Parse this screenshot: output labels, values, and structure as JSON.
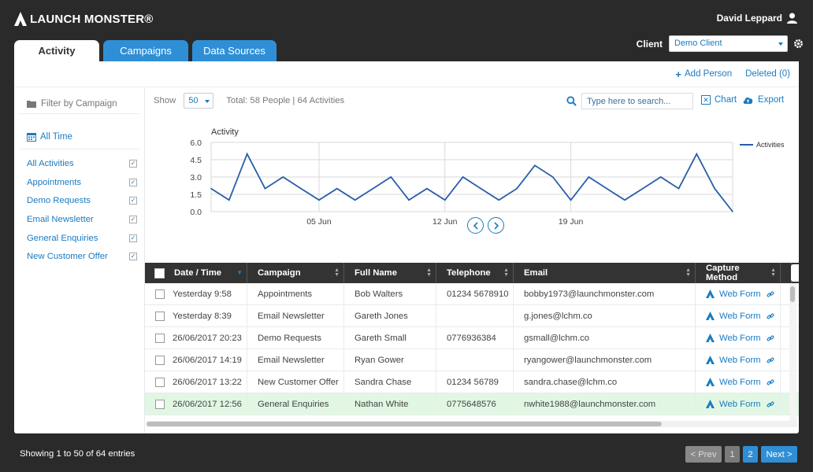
{
  "app": {
    "logo_text": "LAUNCH MONSTER®",
    "user_name": "David Leppard"
  },
  "client": {
    "label": "Client",
    "selected": "Demo Client"
  },
  "tabs": [
    {
      "label": "Activity"
    },
    {
      "label": "Campaigns"
    },
    {
      "label": "Data Sources"
    }
  ],
  "actions": {
    "add_person": "Add Person",
    "deleted": "Deleted (0)"
  },
  "sidebar": {
    "filter_label": "Filter by Campaign",
    "time_label": "All Time",
    "items": [
      {
        "label": "All Activities",
        "checked": true
      },
      {
        "label": "Appointments",
        "checked": true
      },
      {
        "label": "Demo Requests",
        "checked": true
      },
      {
        "label": "Email Newsletter",
        "checked": true
      },
      {
        "label": "General Enquiries",
        "checked": true
      },
      {
        "label": "New Customer Offer",
        "checked": true
      }
    ]
  },
  "toolbar": {
    "show_label": "Show",
    "show_value": "50",
    "total_text": "Total: 58 People | 64 Activities",
    "search_placeholder": "Type here to search...",
    "chart_label": "Chart",
    "export_label": "Export"
  },
  "chart_data": {
    "type": "line",
    "title": "Activity",
    "y_ticks": [
      "6.0",
      "4.5",
      "3.0",
      "1.5",
      "0.0"
    ],
    "ylim": [
      0,
      6
    ],
    "x_ticks": [
      {
        "label": "05 Jun",
        "index": 6
      },
      {
        "label": "12 Jun",
        "index": 13
      },
      {
        "label": "19 Jun",
        "index": 20
      }
    ],
    "grid": true,
    "legend_position": "top-right",
    "series": [
      {
        "name": "Activities",
        "color": "#2a5ea8",
        "values": [
          2,
          1,
          5,
          2,
          3,
          2,
          1,
          2,
          1,
          2,
          3,
          1,
          2,
          1,
          3,
          2,
          1,
          2,
          4,
          3,
          1,
          3,
          2,
          1,
          2,
          3,
          2,
          5,
          2,
          0
        ]
      }
    ]
  },
  "table": {
    "columns": [
      "Date / Time",
      "Campaign",
      "Full Name",
      "Telephone",
      "Email",
      "Capture Method"
    ],
    "rows": [
      {
        "date": "Yesterday 9:58",
        "campaign": "Appointments",
        "name": "Bob Walters",
        "phone": "01234 5678910",
        "email": "bobby1973@launchmonster.com",
        "method": "Web Form"
      },
      {
        "date": "Yesterday 8:39",
        "campaign": "Email Newsletter",
        "name": "Gareth Jones",
        "phone": "",
        "email": "g.jones@lchm.co",
        "method": "Web Form"
      },
      {
        "date": "26/06/2017 20:23",
        "campaign": "Demo Requests",
        "name": "Gareth Small",
        "phone": "0776936384",
        "email": "gsmall@lchm.co",
        "method": "Web Form"
      },
      {
        "date": "26/06/2017 14:19",
        "campaign": "Email Newsletter",
        "name": "Ryan Gower",
        "phone": "",
        "email": "ryangower@launchmonster.com",
        "method": "Web Form"
      },
      {
        "date": "26/06/2017 13:22",
        "campaign": "New Customer Offer",
        "name": "Sandra Chase",
        "phone": "01234 56789",
        "email": "sandra.chase@lchm.co",
        "method": "Web Form"
      },
      {
        "date": "26/06/2017 12:56",
        "campaign": "General Enquiries",
        "name": "Nathan White",
        "phone": "0775648576",
        "email": "nwhite1988@launchmonster.com",
        "method": "Web Form"
      }
    ]
  },
  "footer": {
    "showing": "Showing 1 to 50 of 64 entries",
    "prev": "< Prev",
    "page1": "1",
    "page2": "2",
    "next": "Next >"
  }
}
